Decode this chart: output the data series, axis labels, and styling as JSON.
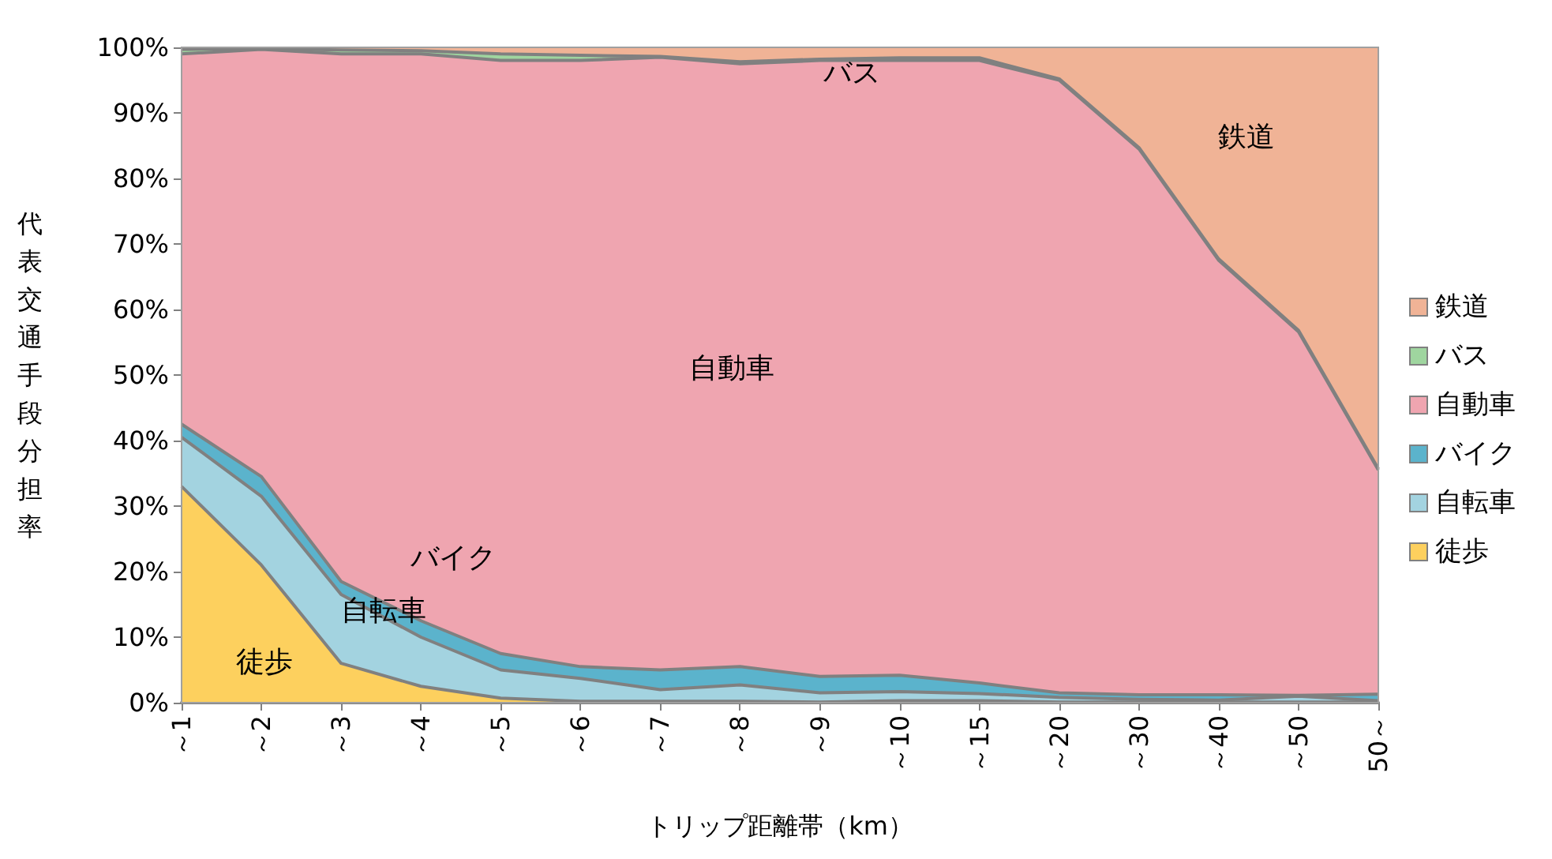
{
  "chart_data": {
    "type": "area",
    "stacked": true,
    "xlabel": "トリップ距離帯（km）",
    "ylabel": "代表交通手段分担率",
    "categories": [
      "～1",
      "～2",
      "～3",
      "～4",
      "～5",
      "～6",
      "～7",
      "～8",
      "～9",
      "～10",
      "～15",
      "～20",
      "～30",
      "～40",
      "～50",
      "50～"
    ],
    "series": [
      {
        "name": "徒歩",
        "color": "#fdd05e",
        "values": [
          33,
          21,
          6,
          2.5,
          0.7,
          0.2,
          0.2,
          0.2,
          0.1,
          0.3,
          0.3,
          0.1,
          0.1,
          0.1,
          0.1,
          0.1
        ]
      },
      {
        "name": "自転車",
        "color": "#a3d3e0",
        "values": [
          7.5,
          10.5,
          10.5,
          7.5,
          4.3,
          3.5,
          1.8,
          2.5,
          1.4,
          1.4,
          1.1,
          0.7,
          0.4,
          0.3,
          0.9,
          0.2
        ]
      },
      {
        "name": "バイク",
        "color": "#5bb3cc",
        "values": [
          2,
          3,
          2,
          2.5,
          2.5,
          1.8,
          3,
          2.8,
          2.5,
          2.5,
          1.6,
          0.7,
          0.7,
          0.8,
          0.1,
          1.0
        ]
      },
      {
        "name": "自動車",
        "color": "#efa5b0",
        "values": [
          56.5,
          65.2,
          80.5,
          86.5,
          90.5,
          92.5,
          93.5,
          92,
          94,
          93.8,
          95,
          93.5,
          83.3,
          66.3,
          55.5,
          34.2
        ]
      },
      {
        "name": "バス",
        "color": "#9fd59f",
        "values": [
          0.7,
          0.1,
          0.6,
          0.5,
          1,
          0.8,
          0.1,
          0.3,
          0.2,
          0.4,
          0.4,
          0.2,
          0.2,
          0.2,
          0.2,
          0.2
        ]
      },
      {
        "name": "鉄道",
        "color": "#f0b396",
        "values": [
          0.3,
          0.2,
          0.4,
          0.5,
          1,
          1.2,
          1.4,
          2.2,
          1.8,
          1.6,
          1.6,
          4.8,
          15.3,
          32.3,
          43.3,
          64.3
        ]
      }
    ],
    "ylim": [
      0,
      100
    ],
    "yticks": [
      {
        "value": 0,
        "label": "0%"
      },
      {
        "value": 10,
        "label": "10%"
      },
      {
        "value": 20,
        "label": "20%"
      },
      {
        "value": 30,
        "label": "30%"
      },
      {
        "value": 40,
        "label": "40%"
      },
      {
        "value": 50,
        "label": "50%"
      },
      {
        "value": 60,
        "label": "60%"
      },
      {
        "value": 70,
        "label": "70%"
      },
      {
        "value": 80,
        "label": "80%"
      },
      {
        "value": 90,
        "label": "90%"
      },
      {
        "value": 100,
        "label": "100%"
      }
    ],
    "grid": false,
    "legend": "right",
    "marker": "none"
  }
}
